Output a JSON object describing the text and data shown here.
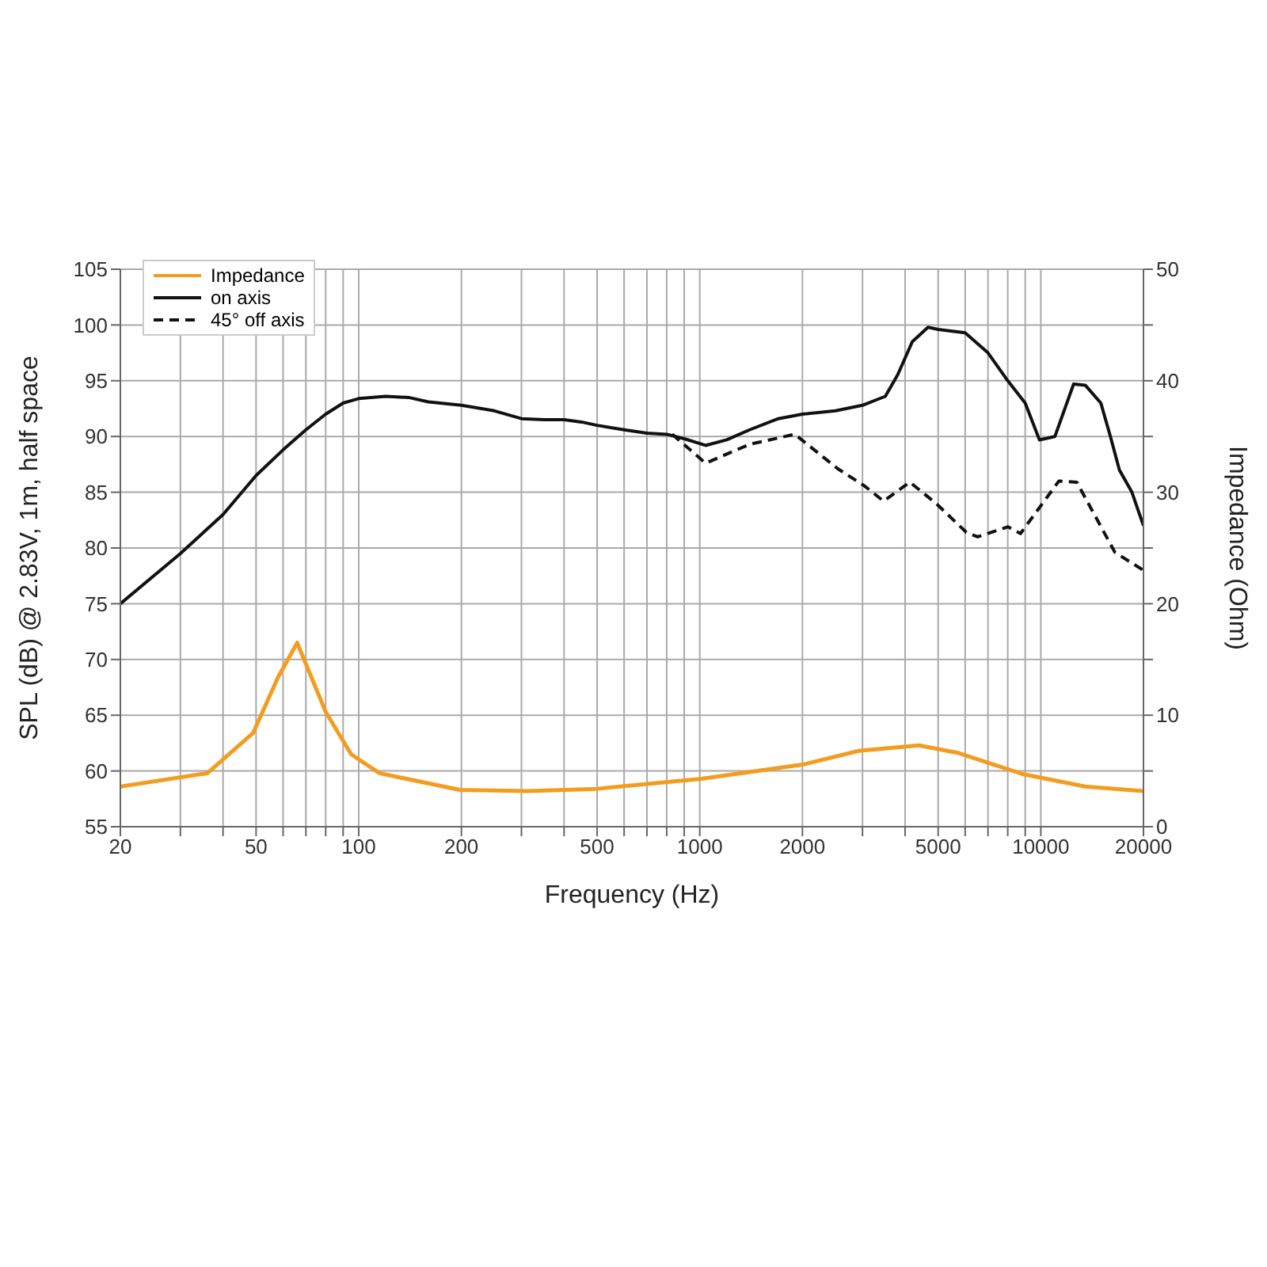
{
  "chart_data": {
    "type": "line",
    "xlabel": "Frequency (Hz)",
    "ylabel": "SPL (dB) @ 2.83V, 1m, half space",
    "y2label": "Impedance (Ohm)",
    "log": "x",
    "grid": true,
    "legend": "top left",
    "marker": "none",
    "xlim": [
      20,
      20000
    ],
    "xticks": [
      20,
      {
        "value": 30,
        "label": null
      },
      {
        "value": 40,
        "label": null
      },
      50,
      {
        "value": 60,
        "label": null
      },
      {
        "value": 70,
        "label": null
      },
      {
        "value": 80,
        "label": null
      },
      {
        "value": 90,
        "label": null
      },
      100,
      200,
      {
        "value": 300,
        "label": null
      },
      {
        "value": 400,
        "label": null
      },
      500,
      {
        "value": 600,
        "label": null
      },
      {
        "value": 700,
        "label": null
      },
      {
        "value": 800,
        "label": null
      },
      {
        "value": 900,
        "label": null
      },
      1000,
      2000,
      {
        "value": 3000,
        "label": null
      },
      {
        "value": 4000,
        "label": null
      },
      5000,
      {
        "value": 6000,
        "label": null
      },
      {
        "value": 7000,
        "label": null
      },
      {
        "value": 8000,
        "label": null
      },
      {
        "value": 9000,
        "label": null
      },
      10000,
      20000
    ],
    "ylim": [
      55,
      105
    ],
    "yticks": [
      55,
      60,
      65,
      70,
      75,
      80,
      85,
      90,
      95,
      100,
      105
    ],
    "y2lim": [
      0,
      50
    ],
    "y2ticks": [
      0,
      {
        "value": 5,
        "label": null
      },
      10,
      {
        "value": 15,
        "label": null
      },
      20,
      {
        "value": 25,
        "label": null
      },
      30,
      {
        "value": 35,
        "label": null
      },
      40,
      {
        "value": 45,
        "label": null
      },
      50
    ],
    "series": [
      {
        "name": "Impedance",
        "color": "#f39c1f",
        "axis": "y2",
        "line_style": "solid",
        "x": [
          20,
          36,
          49,
          58,
          66,
          80,
          95,
          115,
          198,
          313,
          500,
          1010,
          2020,
          2920,
          4390,
          5750,
          8900,
          13500,
          20000
        ],
        "values": [
          3.6,
          4.8,
          8.4,
          13.4,
          16.5,
          10.3,
          6.5,
          4.8,
          3.3,
          3.2,
          3.4,
          4.3,
          5.6,
          6.8,
          7.3,
          6.6,
          4.7,
          3.6,
          3.2
        ]
      },
      {
        "name": "on axis",
        "color": "#111111",
        "line_style": "solid",
        "x": [
          20,
          30,
          40,
          50,
          60,
          70,
          80,
          90,
          100,
          120,
          140,
          160,
          200,
          250,
          300,
          350,
          400,
          450,
          500,
          600,
          700,
          800,
          900,
          1040,
          1200,
          1400,
          1700,
          2000,
          2500,
          3000,
          3500,
          3800,
          4200,
          4670,
          5000,
          6000,
          7000,
          8000,
          9000,
          9910,
          11000,
          12480,
          13500,
          15000,
          16000,
          17000,
          18500,
          20000
        ],
        "values": [
          75,
          79.5,
          83,
          86.5,
          88.8,
          90.6,
          92,
          93,
          93.4,
          93.6,
          93.5,
          93.1,
          92.8,
          92.3,
          91.6,
          91.5,
          91.5,
          91.3,
          91,
          90.6,
          90.3,
          90.2,
          89.8,
          89.2,
          89.7,
          90.6,
          91.6,
          92,
          92.3,
          92.8,
          93.6,
          95.5,
          98.5,
          99.8,
          99.6,
          99.3,
          97.5,
          95,
          93,
          89.7,
          90,
          94.7,
          94.6,
          93,
          90,
          87,
          85,
          82
        ]
      },
      {
        "name": "45° off axis",
        "color": "#111111",
        "line_style": "dashed",
        "x": [
          830,
          1040,
          1400,
          1900,
          2540,
          3030,
          3460,
          4130,
          4930,
          6050,
          6530,
          8010,
          8720,
          11300,
          12750,
          16500,
          20000
        ],
        "values": [
          90.2,
          87.6,
          89.3,
          90.2,
          87.1,
          85.6,
          84.2,
          85.9,
          84,
          81.4,
          81,
          81.9,
          81.3,
          86,
          85.9,
          79.6,
          78
        ]
      }
    ]
  }
}
